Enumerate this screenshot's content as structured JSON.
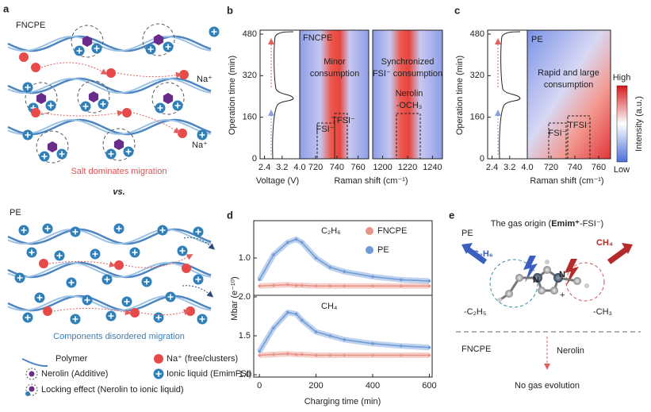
{
  "panels": {
    "a": {
      "label": "a",
      "top_title": "FNCPE",
      "na_label_1": "Na⁺",
      "na_label_2": "Na⁺",
      "top_caption": "Salt dominates migration",
      "versus": "vs.",
      "bottom_title": "PE",
      "bottom_caption": "Components disordered migration",
      "legend": [
        "Polymer",
        "Na⁺ (free/clusters)",
        "Nerolin (Additive)",
        "Ionic liquid (EmimFSI)",
        "Locking effect (Nerolin to ionic liquid)"
      ]
    },
    "b": {
      "label": "b",
      "y_label": "Operation time (min)",
      "ylim": [
        0,
        480
      ],
      "yticks": [
        0,
        160,
        320,
        480
      ],
      "vlim": [
        2.2,
        4.0
      ],
      "vticks": [
        2.4,
        3.2,
        {
          "value": 4,
          "label": "4.0"
        }
      ],
      "v_label": "Voltage (V)",
      "rlim_1": [
        705,
        770
      ],
      "rticks_1": [
        720,
        740,
        760
      ],
      "rlim_2": [
        1192,
        1248
      ],
      "rticks_2": [
        1200,
        1220,
        1240
      ],
      "r_label": "Raman shift (cm⁻¹)",
      "tag": "FNCPE",
      "note_1": [
        "Minor",
        "consumption"
      ],
      "note_2": [
        "Synchronized",
        "FSI⁻ consumption"
      ],
      "note_3": [
        "Nerolin",
        "-OCH₃"
      ],
      "fsi": "FSI⁻",
      "tfsi": "TFSI⁻"
    },
    "c": {
      "label": "c",
      "y_label": "Operation time (min)",
      "ylim": [
        0,
        480
      ],
      "yticks": [
        0,
        160,
        320,
        480
      ],
      "vlim": [
        2.2,
        4.0
      ],
      "vticks": [
        2.4,
        3.2,
        {
          "value": 4,
          "label": "4.0"
        }
      ],
      "rlim": [
        700,
        770
      ],
      "rticks": [
        720,
        740,
        760
      ],
      "r_label": "Raman shift (cm⁻¹)",
      "tag": "PE",
      "note": [
        "Rapid and large",
        "consumption"
      ],
      "fsi": "FSI⁻",
      "tfsi": "TFSI⁻",
      "cbar_high": "High",
      "cbar_low": "Low",
      "cbar_label": "Intensity (a.u.)"
    },
    "d": {
      "label": "d",
      "y_label": "Mbar (e⁻¹⁰)",
      "x_label": "Charging time (min)"
    },
    "e": {
      "label": "e",
      "title_parts": [
        "The gas origin (",
        "Emim⁺",
        "-FSI⁻)"
      ],
      "top_tag": "PE",
      "gas_left": "C₂H₆",
      "gas_right": "CH₄",
      "group_left": "-C₂H₅",
      "group_right": "-CH₃",
      "n_1": "N",
      "n_2": "N",
      "charge": "+",
      "bottom_tag": "FNCPE",
      "arrow_label": "Nerolin",
      "result": "No gas evolution"
    }
  },
  "chart_data": [
    {
      "type": "line",
      "annotation": "C₂H₆",
      "xlim": [
        -20,
        610
      ],
      "ylim": [
        0.4,
        1.6
      ],
      "yticks": [
        {
          "value": 1,
          "label": "1.0"
        }
      ],
      "x": [
        0,
        50,
        100,
        130,
        150,
        200,
        250,
        300,
        400,
        500,
        600
      ],
      "series": [
        {
          "name": "FNCPE",
          "color": "#e8948a",
          "values": [
            0.55,
            0.56,
            0.57,
            0.56,
            0.56,
            0.55,
            0.55,
            0.55,
            0.55,
            0.55,
            0.55
          ]
        },
        {
          "name": "PE",
          "color": "#6f9bd6",
          "values": [
            0.65,
            1.05,
            1.25,
            1.3,
            1.25,
            1.0,
            0.85,
            0.78,
            0.7,
            0.65,
            0.63
          ]
        }
      ]
    },
    {
      "type": "line",
      "annotation": "CH₄",
      "xlim": [
        -20,
        610
      ],
      "ylim": [
        0.97,
        2.02
      ],
      "yticks": [
        {
          "value": 1,
          "label": "1.0"
        },
        1.5,
        {
          "value": 2,
          "label": "2.0"
        }
      ],
      "xticks": [
        0,
        200,
        400,
        600
      ],
      "x": [
        0,
        50,
        100,
        130,
        150,
        200,
        250,
        300,
        400,
        500,
        600
      ],
      "series": [
        {
          "color": "#e8948a",
          "values": [
            1.25,
            1.26,
            1.27,
            1.26,
            1.26,
            1.25,
            1.25,
            1.25,
            1.25,
            1.25,
            1.25
          ]
        },
        {
          "color": "#6f9bd6",
          "values": [
            1.3,
            1.6,
            1.8,
            1.78,
            1.7,
            1.55,
            1.5,
            1.45,
            1.4,
            1.37,
            1.35
          ]
        }
      ]
    }
  ]
}
